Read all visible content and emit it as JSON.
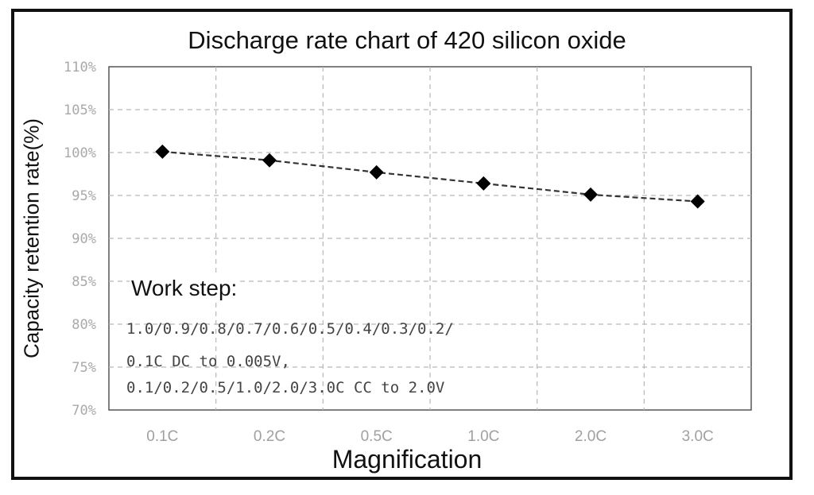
{
  "chart_data": {
    "type": "line",
    "title": "Discharge rate chart of 420 silicon oxide",
    "xlabel": "Magnification",
    "ylabel": "Capacity retention rate(%)",
    "categories": [
      "0.1C",
      "0.2C",
      "0.5C",
      "1.0C",
      "2.0C",
      "3.0C"
    ],
    "values": [
      100.1,
      99.1,
      97.7,
      96.4,
      95.1,
      94.3
    ],
    "ylim": [
      70,
      110
    ],
    "yticks": [
      "70%",
      "75%",
      "80%",
      "85%",
      "90%",
      "95%",
      "100%",
      "105%",
      "110%"
    ],
    "grid": true,
    "marker": "diamond",
    "line_style": "dashed",
    "colors": {
      "line": "#333333",
      "marker": "#000000",
      "grid": "#b8b8b8",
      "tick_text": "#a9a9a9"
    },
    "annotation": {
      "heading": "Work step:",
      "lines": [
        "1.0/0.9/0.8/0.7/0.6/0.5/0.4/0.3/0.2/",
        "0.1C DC to 0.005V,",
        "0.1/0.2/0.5/1.0/2.0/3.0C CC to 2.0V"
      ]
    }
  }
}
